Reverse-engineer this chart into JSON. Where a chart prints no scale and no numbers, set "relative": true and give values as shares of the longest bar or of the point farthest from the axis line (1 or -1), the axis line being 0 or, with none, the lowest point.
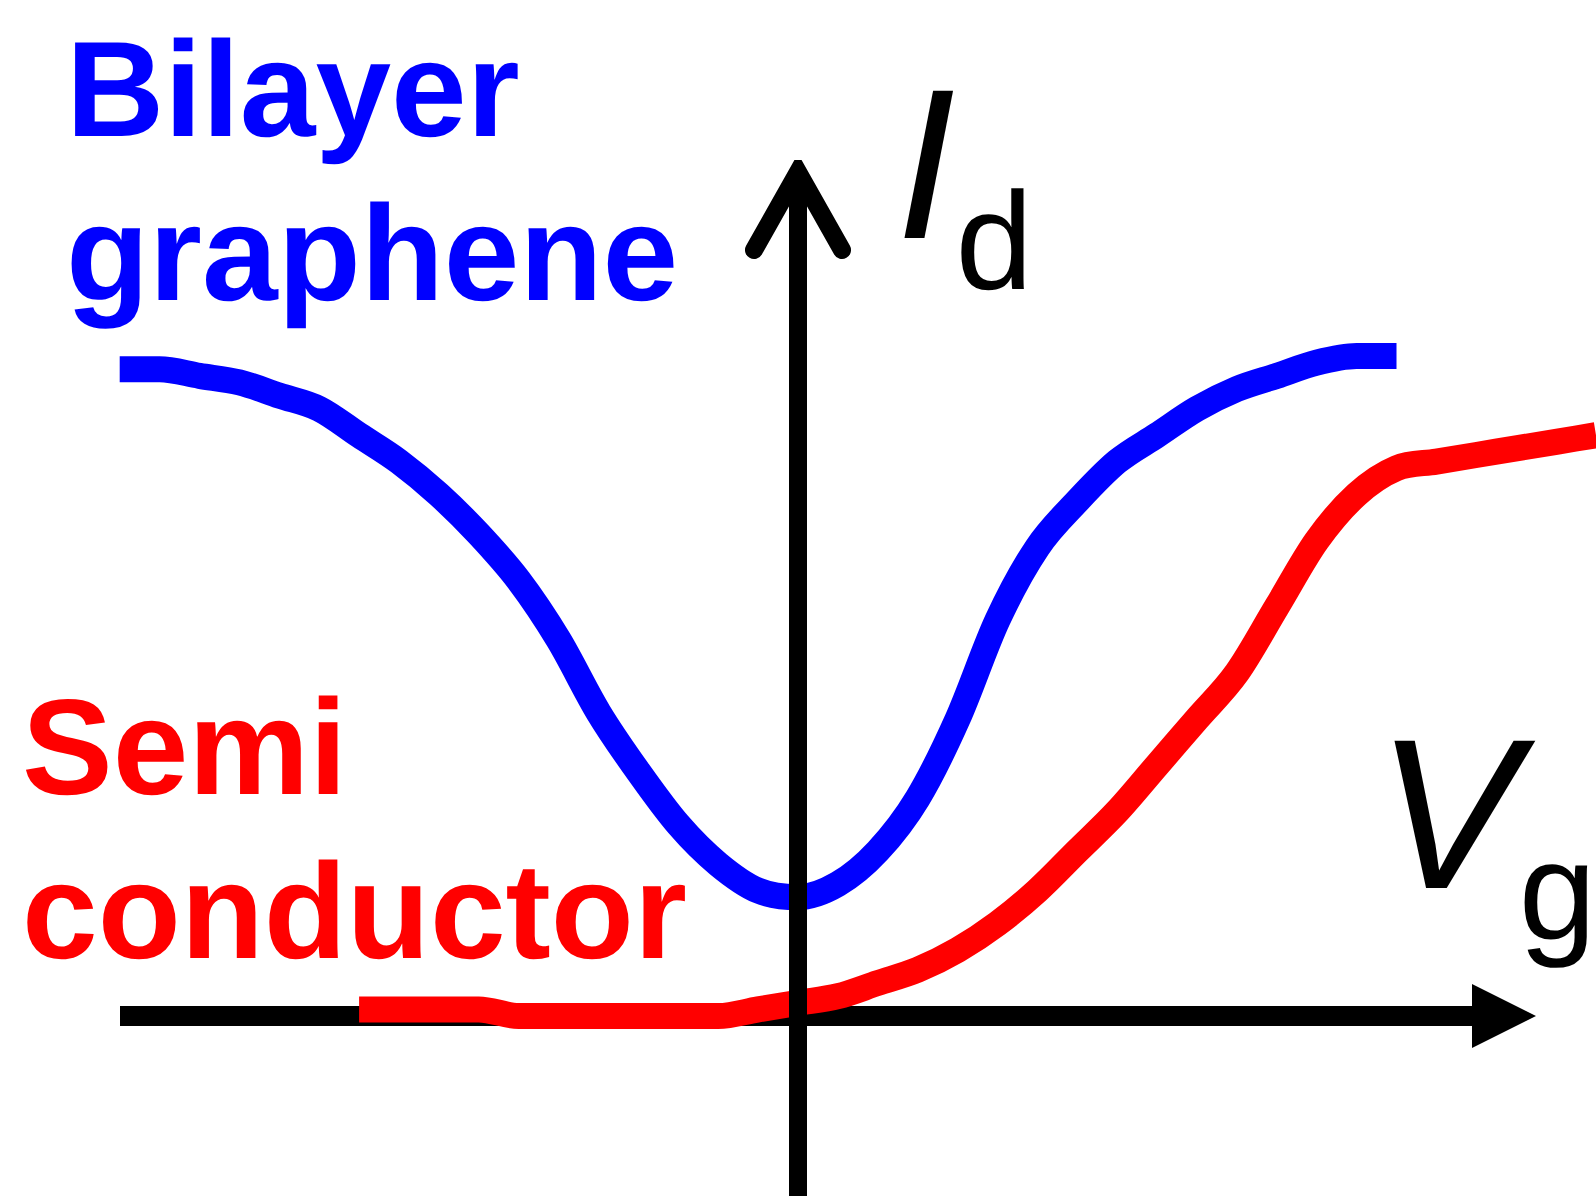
{
  "chart_data": {
    "type": "line",
    "relative": true,
    "xlabel": "V$_{g}$",
    "ylabel": "I$_{d}$",
    "marker": "none",
    "line_style": "solid",
    "categories": [
      null,
      null,
      null,
      null,
      null,
      null,
      null,
      null,
      null,
      null,
      null,
      null,
      null,
      null,
      null,
      null,
      null,
      null,
      null,
      null,
      null,
      null,
      null,
      null,
      null,
      null,
      null,
      null,
      null,
      null,
      null,
      null,
      null,
      null,
      null,
      null,
      null,
      null,
      null,
      null,
      null
    ],
    "series": [
      {
        "name": "Bilayer graphene",
        "color": "#0000ff",
        "values": [
          null,
          null,
          null,
          0.98,
          0.98,
          0.97,
          0.96,
          0.94,
          0.92,
          0.88,
          0.84,
          0.79,
          0.73,
          0.66,
          0.57,
          0.46,
          0.37,
          0.29,
          0.23,
          0.19,
          0.18,
          0.2,
          0.25,
          0.33,
          0.45,
          0.6,
          0.71,
          0.78,
          0.84,
          0.88,
          0.92,
          0.95,
          0.97,
          0.99,
          1.0,
          1.0,
          null,
          null,
          null,
          null,
          null
        ]
      },
      {
        "name": "Semi conductor",
        "color": "#ff0000",
        "values": [
          null,
          null,
          null,
          null,
          null,
          null,
          null,
          null,
          null,
          0.01,
          0.01,
          0.01,
          0.01,
          0.0,
          0.0,
          0.0,
          0.0,
          0.0,
          0.0,
          0.01,
          0.02,
          0.03,
          0.05,
          0.07,
          0.1,
          0.14,
          0.19,
          0.25,
          0.31,
          0.38,
          0.45,
          0.52,
          0.62,
          0.72,
          0.79,
          0.83,
          0.84,
          0.85,
          0.86,
          0.87,
          0.88
        ]
      }
    ]
  }
}
